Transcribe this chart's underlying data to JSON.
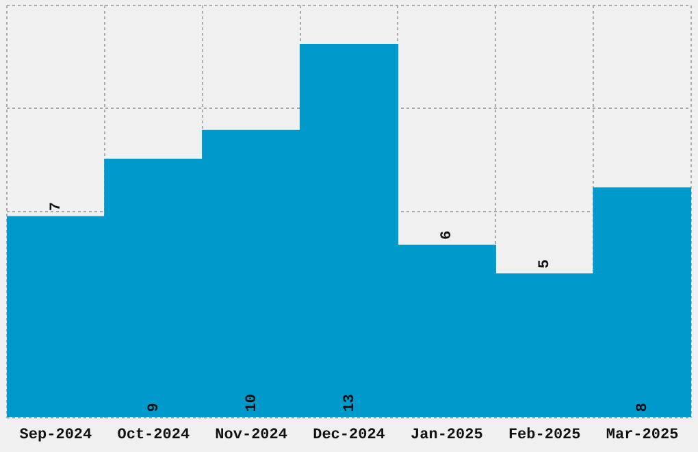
{
  "chart_data": {
    "type": "bar",
    "categories": [
      "Sep-2024",
      "Oct-2024",
      "Nov-2024",
      "Dec-2024",
      "Jan-2025",
      "Feb-2025",
      "Mar-2025"
    ],
    "values": [
      7,
      9,
      10,
      13,
      6,
      5,
      8
    ],
    "color": "#0099cc",
    "ylim": [
      0,
      14.35
    ],
    "grid": true,
    "data_labels": true,
    "legend": false,
    "tick_labels": "x"
  }
}
